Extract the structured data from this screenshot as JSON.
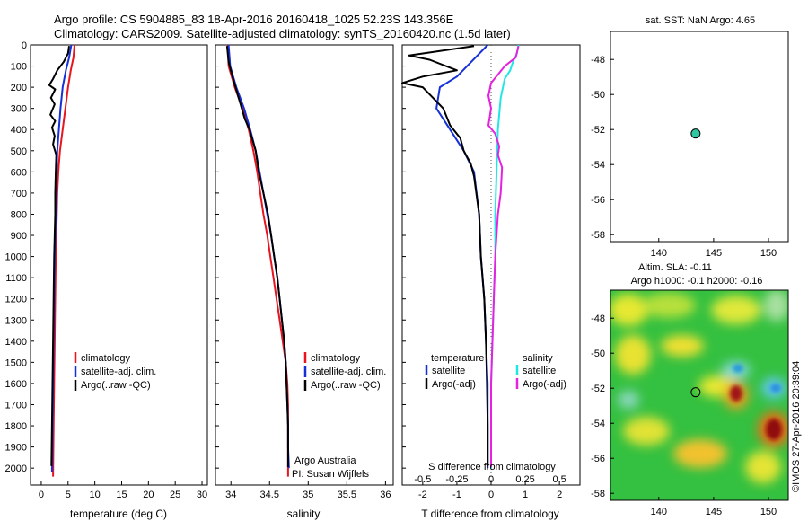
{
  "header": {
    "line1": "Argo profile: CS 5904885_83 18-Apr-2016 20160418_1025 52.23S 143.356E",
    "line2": "Climatology: CARS2009. Satellite-adjusted climatology: synTS_20160420.nc (1.5d later)"
  },
  "colors": {
    "climatology": "#e8141e",
    "satellite": "#1530d6",
    "argo": "#000000",
    "sal_sat": "#22e6e6",
    "sal_argo": "#e622e0"
  },
  "depth_ticks": [
    0,
    100,
    200,
    300,
    400,
    500,
    600,
    700,
    800,
    900,
    1000,
    1100,
    1200,
    1300,
    1400,
    1500,
    1600,
    1700,
    1800,
    1900,
    2000
  ],
  "chart_data": [
    {
      "type": "line",
      "xlabel": "temperature (deg C)",
      "xticks": [
        "0",
        "5",
        "10",
        "15",
        "20",
        "25",
        "30"
      ],
      "xlim": [
        -2,
        31
      ],
      "ylim": [
        2080,
        0
      ],
      "legend": [
        "climatology",
        "satellite-adj. clim.",
        "Argo(..raw -QC)"
      ],
      "series": [
        {
          "name": "climatology",
          "color_key": "climatology",
          "points": [
            [
              6.2,
              0
            ],
            [
              6.0,
              60
            ],
            [
              5.5,
              120
            ],
            [
              5.0,
              200
            ],
            [
              4.5,
              300
            ],
            [
              4.0,
              400
            ],
            [
              3.5,
              500
            ],
            [
              3.2,
              600
            ],
            [
              3.0,
              700
            ],
            [
              2.9,
              800
            ],
            [
              2.8,
              900
            ],
            [
              2.7,
              1000
            ],
            [
              2.6,
              1200
            ],
            [
              2.5,
              1400
            ],
            [
              2.4,
              1600
            ],
            [
              2.3,
              1800
            ],
            [
              2.2,
              2040
            ]
          ]
        },
        {
          "name": "satellite-adj. clim.",
          "color_key": "satellite",
          "points": [
            [
              5.6,
              0
            ],
            [
              5.2,
              60
            ],
            [
              4.6,
              120
            ],
            [
              4.0,
              200
            ],
            [
              3.6,
              300
            ],
            [
              3.3,
              400
            ],
            [
              3.0,
              500
            ],
            [
              2.9,
              600
            ],
            [
              2.8,
              700
            ],
            [
              2.7,
              800
            ],
            [
              2.6,
              900
            ],
            [
              2.5,
              1000
            ],
            [
              2.4,
              1200
            ],
            [
              2.3,
              1400
            ],
            [
              2.2,
              1600
            ],
            [
              2.1,
              1800
            ],
            [
              2.0,
              2020
            ]
          ]
        },
        {
          "name": "Argo(..raw -QC)",
          "color_key": "argo",
          "points": [
            [
              5.2,
              5
            ],
            [
              5.0,
              40
            ],
            [
              4.2,
              80
            ],
            [
              3.0,
              120
            ],
            [
              2.2,
              160
            ],
            [
              1.5,
              190
            ],
            [
              2.6,
              210
            ],
            [
              1.8,
              250
            ],
            [
              2.5,
              280
            ],
            [
              1.7,
              330
            ],
            [
              2.6,
              360
            ],
            [
              2.0,
              390
            ],
            [
              2.5,
              430
            ],
            [
              2.2,
              470
            ],
            [
              2.8,
              520
            ],
            [
              2.7,
              600
            ],
            [
              2.6,
              700
            ],
            [
              2.6,
              800
            ],
            [
              2.5,
              900
            ],
            [
              2.4,
              1000
            ],
            [
              2.3,
              1200
            ],
            [
              2.2,
              1400
            ],
            [
              2.1,
              1600
            ],
            [
              2.0,
              1800
            ],
            [
              1.9,
              1990
            ]
          ]
        }
      ]
    },
    {
      "type": "line",
      "xlabel": "salinity",
      "xticks": [
        "34",
        "34.5",
        "35",
        "35.5",
        "36"
      ],
      "xlim": [
        33.8,
        36.1
      ],
      "ylim": [
        2080,
        0
      ],
      "legend": [
        "climatology",
        "satellite-adj. clim.",
        "Argo(..raw -QC)"
      ],
      "annotation": [
        "Argo Australia",
        "PI: Susan Wijffels"
      ],
      "series": [
        {
          "name": "climatology",
          "color_key": "climatology",
          "points": [
            [
              33.96,
              0
            ],
            [
              33.97,
              100
            ],
            [
              34.05,
              200
            ],
            [
              34.15,
              300
            ],
            [
              34.23,
              400
            ],
            [
              34.29,
              500
            ],
            [
              34.34,
              600
            ],
            [
              34.38,
              700
            ],
            [
              34.42,
              800
            ],
            [
              34.47,
              900
            ],
            [
              34.51,
              1000
            ],
            [
              34.55,
              1100
            ],
            [
              34.59,
              1200
            ],
            [
              34.63,
              1300
            ],
            [
              34.67,
              1400
            ],
            [
              34.71,
              1500
            ],
            [
              34.73,
              1600
            ],
            [
              34.74,
              1700
            ],
            [
              34.74,
              1800
            ],
            [
              34.74,
              1900
            ],
            [
              34.74,
              2040
            ]
          ]
        },
        {
          "name": "satellite-adj. clim.",
          "color_key": "satellite",
          "points": [
            [
              33.97,
              0
            ],
            [
              33.99,
              100
            ],
            [
              34.07,
              200
            ],
            [
              34.17,
              300
            ],
            [
              34.25,
              400
            ],
            [
              34.32,
              500
            ],
            [
              34.37,
              600
            ],
            [
              34.42,
              700
            ],
            [
              34.47,
              800
            ],
            [
              34.52,
              900
            ],
            [
              34.56,
              1000
            ],
            [
              34.6,
              1100
            ],
            [
              34.63,
              1200
            ],
            [
              34.66,
              1300
            ],
            [
              34.69,
              1400
            ],
            [
              34.71,
              1500
            ],
            [
              34.72,
              1600
            ],
            [
              34.73,
              1700
            ],
            [
              34.74,
              1800
            ],
            [
              34.74,
              1900
            ],
            [
              34.75,
              2000
            ]
          ]
        },
        {
          "name": "Argo(..raw -QC)",
          "color_key": "argo",
          "points": [
            [
              33.95,
              5
            ],
            [
              33.97,
              80
            ],
            [
              34.02,
              150
            ],
            [
              34.06,
              200
            ],
            [
              34.1,
              250
            ],
            [
              34.14,
              300
            ],
            [
              34.18,
              350
            ],
            [
              34.24,
              400
            ],
            [
              34.28,
              450
            ],
            [
              34.32,
              500
            ],
            [
              34.36,
              600
            ],
            [
              34.42,
              700
            ],
            [
              34.48,
              800
            ],
            [
              34.52,
              900
            ],
            [
              34.56,
              1000
            ],
            [
              34.6,
              1100
            ],
            [
              34.63,
              1200
            ],
            [
              34.66,
              1300
            ],
            [
              34.69,
              1400
            ],
            [
              34.71,
              1500
            ],
            [
              34.72,
              1600
            ],
            [
              34.73,
              1700
            ],
            [
              34.74,
              1800
            ],
            [
              34.74,
              1900
            ],
            [
              34.74,
              1995
            ]
          ]
        }
      ]
    },
    {
      "type": "line",
      "xlabel": "T difference from climatology",
      "top_axis_label": "S difference from climatology",
      "xticks": [
        "-2",
        "-1",
        "0",
        "1",
        "2"
      ],
      "top_xticks": [
        "-0.5",
        "-0.25",
        "0",
        "0.25",
        "0.5"
      ],
      "xlim": [
        -2.6,
        2.6
      ],
      "top_xlim": [
        -0.65,
        0.65
      ],
      "ylim": [
        2080,
        0
      ],
      "legend_temperature": [
        "temperature",
        "satellite",
        "Argo(-adj)"
      ],
      "legend_salinity": [
        "salinity",
        "satellite",
        "Argo(-adj)"
      ],
      "series": [
        {
          "name": "satellite",
          "legend_group": "temperature",
          "color_key": "satellite",
          "points": [
            [
              -0.1,
              0
            ],
            [
              -0.4,
              50
            ],
            [
              -0.7,
              100
            ],
            [
              -1.0,
              150
            ],
            [
              -1.5,
              200
            ],
            [
              -1.6,
              300
            ],
            [
              -1.2,
              400
            ],
            [
              -0.8,
              500
            ],
            [
              -0.5,
              600
            ],
            [
              -0.35,
              800
            ],
            [
              -0.3,
              1000
            ],
            [
              -0.2,
              1200
            ],
            [
              -0.15,
              1400
            ],
            [
              -0.1,
              1600
            ],
            [
              -0.1,
              1800
            ],
            [
              -0.1,
              2000
            ]
          ]
        },
        {
          "name": "Argo(-adj)",
          "legend_group": "temperature",
          "color_key": "argo",
          "points": [
            [
              -0.5,
              5
            ],
            [
              -2.4,
              50
            ],
            [
              -1.8,
              70
            ],
            [
              -1.0,
              120
            ],
            [
              -2.0,
              150
            ],
            [
              -2.6,
              180
            ],
            [
              -2.0,
              200
            ],
            [
              -1.7,
              250
            ],
            [
              -1.4,
              300
            ],
            [
              -1.2,
              380
            ],
            [
              -0.9,
              440
            ],
            [
              -0.8,
              500
            ],
            [
              -0.6,
              560
            ],
            [
              -0.5,
              620
            ],
            [
              -0.35,
              800
            ],
            [
              -0.3,
              1000
            ],
            [
              -0.2,
              1200
            ],
            [
              -0.15,
              1400
            ],
            [
              -0.12,
              1600
            ],
            [
              -0.1,
              1800
            ],
            [
              -0.1,
              1990
            ]
          ]
        },
        {
          "name": "satellite",
          "legend_group": "salinity",
          "color_key": "sal_sat",
          "points": [
            [
              0.2,
              0
            ],
            [
              0.19,
              40
            ],
            [
              0.16,
              80
            ],
            [
              0.14,
              120
            ],
            [
              0.1,
              160
            ],
            [
              0.07,
              250
            ],
            [
              0.05,
              400
            ],
            [
              0.04,
              600
            ],
            [
              0.03,
              800
            ],
            [
              0.03,
              1000
            ],
            [
              0.02,
              1200
            ],
            [
              0.01,
              1400
            ],
            [
              0.0,
              1600
            ],
            [
              0.0,
              1800
            ],
            [
              0.0,
              2000
            ]
          ]
        },
        {
          "name": "Argo(-adj)",
          "legend_group": "salinity",
          "color_key": "sal_argo",
          "points": [
            [
              0.2,
              5
            ],
            [
              0.18,
              60
            ],
            [
              0.1,
              100
            ],
            [
              0.05,
              140
            ],
            [
              0.0,
              180
            ],
            [
              -0.02,
              240
            ],
            [
              0.0,
              300
            ],
            [
              -0.02,
              380
            ],
            [
              0.03,
              420
            ],
            [
              0.06,
              480
            ],
            [
              0.05,
              520
            ],
            [
              0.08,
              580
            ],
            [
              0.07,
              700
            ],
            [
              0.05,
              800
            ],
            [
              0.04,
              900
            ],
            [
              0.03,
              1000
            ],
            [
              0.02,
              1200
            ],
            [
              0.01,
              1400
            ],
            [
              0.0,
              1600
            ],
            [
              0.0,
              1800
            ],
            [
              0.0,
              1995
            ]
          ]
        }
      ]
    },
    {
      "type": "scatter",
      "title": "sat. SST: NaN Argo: 4.65",
      "xticks": [
        "140",
        "145",
        "150"
      ],
      "yticks": [
        "-48",
        "-50",
        "-52",
        "-54",
        "-56",
        "-58"
      ],
      "xlim": [
        135.6,
        151.8
      ],
      "ylim": [
        -58.4,
        -46.4
      ],
      "points": [
        [
          143.36,
          -52.23
        ]
      ],
      "marker_color": "#2fc6a0"
    },
    {
      "type": "heatmap",
      "title_lines": [
        "Altim. SLA: -0.11",
        "Argo h1000: -0.1 h2000: -0.16"
      ],
      "xticks": [
        "140",
        "145",
        "150"
      ],
      "yticks": [
        "-48",
        "-50",
        "-52",
        "-54",
        "-56",
        "-58"
      ],
      "xlim": [
        135.6,
        151.8
      ],
      "ylim": [
        -58.4,
        -46.4
      ],
      "points": [
        [
          143.36,
          -52.23
        ]
      ],
      "side_label": "©IMOS 27-Apr-2016 20:39:04"
    }
  ]
}
